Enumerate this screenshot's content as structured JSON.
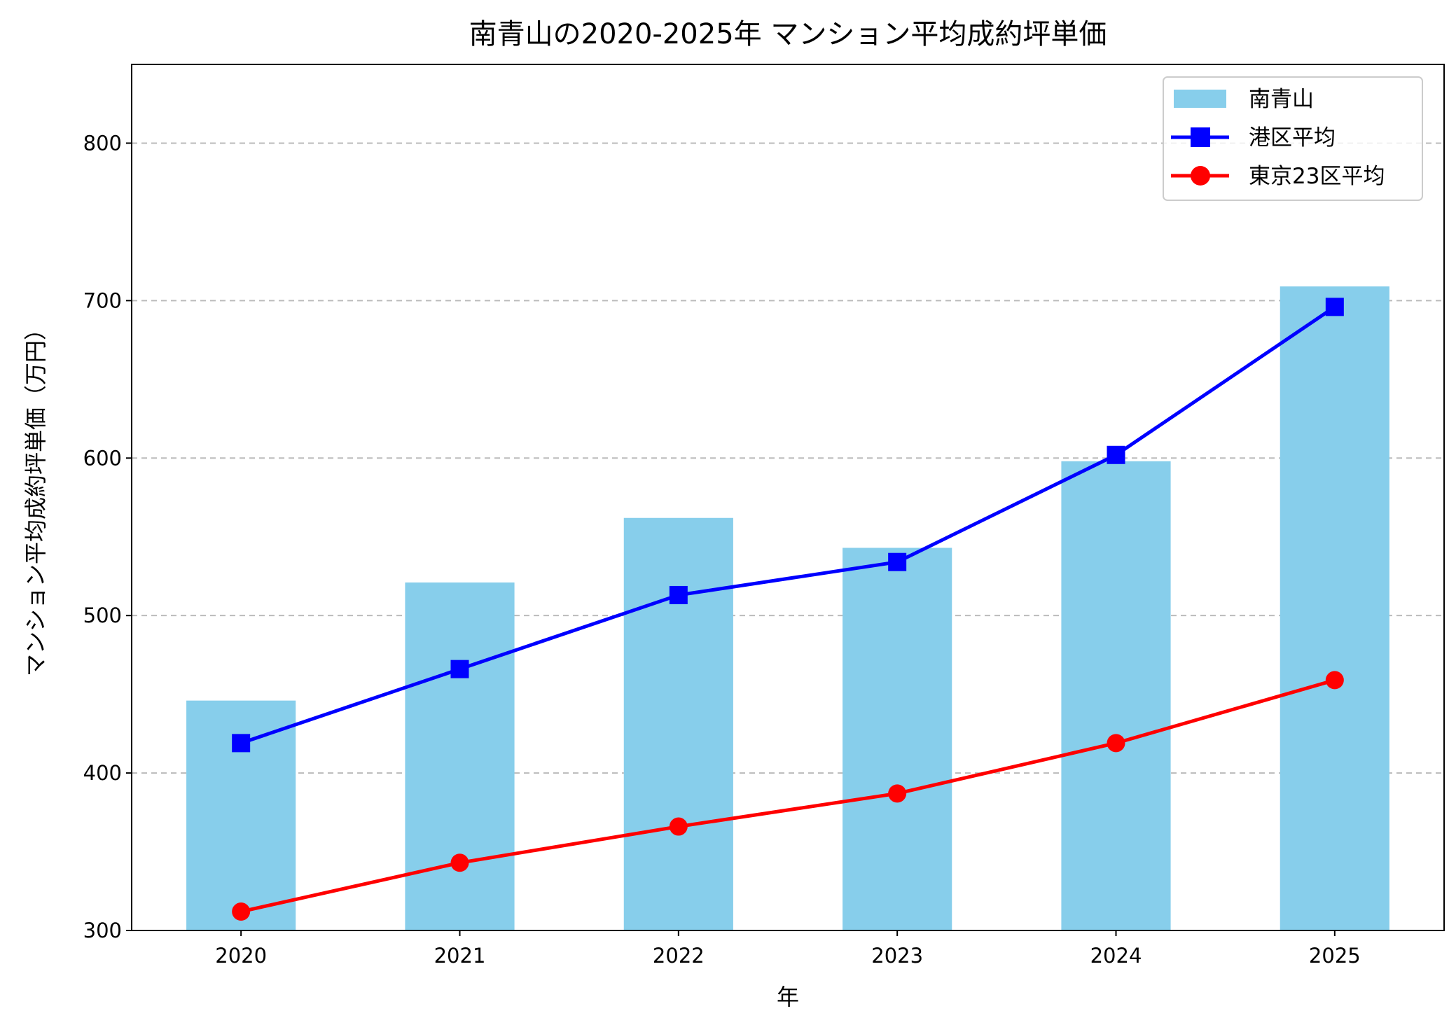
{
  "chart_data": {
    "type": "bar+line",
    "title": "南青山の2020-2025年 マンション平均成約坪単価",
    "xlabel": "年",
    "ylabel": "マンション平均成約坪単価（万円）",
    "categories": [
      "2020",
      "2021",
      "2022",
      "2023",
      "2024",
      "2025"
    ],
    "ylim": [
      300,
      850
    ],
    "yticks": [
      300,
      400,
      500,
      600,
      700,
      800
    ],
    "grid": "y, dashed",
    "legend_position": "top-right",
    "series": [
      {
        "name": "南青山",
        "kind": "bar",
        "color": "#87CEEB",
        "values": [
          446,
          521,
          562,
          543,
          598,
          709
        ]
      },
      {
        "name": "港区平均",
        "kind": "line",
        "marker": "square",
        "color": "#0000FF",
        "values": [
          419,
          466,
          513,
          534,
          602,
          696
        ]
      },
      {
        "name": "東京23区平均",
        "kind": "line",
        "marker": "circle",
        "color": "#FF0000",
        "values": [
          312,
          343,
          366,
          387,
          419,
          459
        ]
      }
    ]
  }
}
